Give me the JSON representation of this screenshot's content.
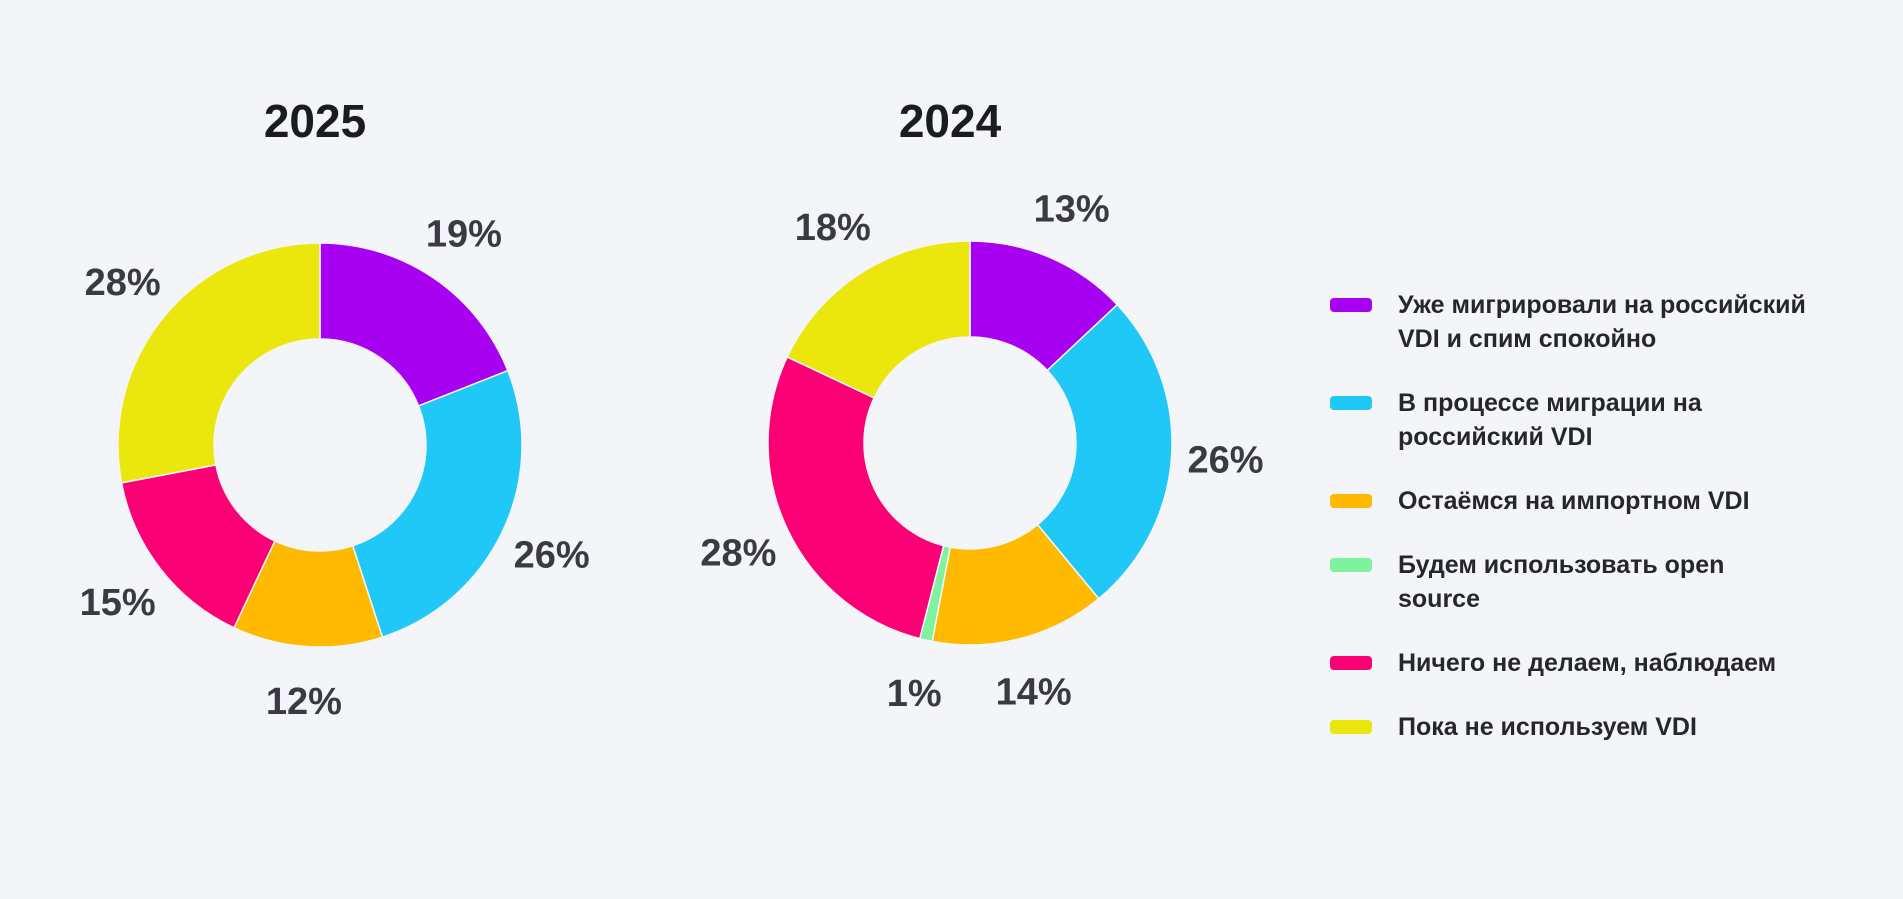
{
  "background_color": "#F4F5F9",
  "title_color": "#1B1B23",
  "label_color": "#3A3A44",
  "chart_data": [
    {
      "type": "pie",
      "subtype": "donut",
      "title": "2025",
      "unit": "%",
      "categories": [
        "Уже мигрировали на российский VDI и спим спокойно",
        "В процессе миграции на российский VDI",
        "Остаёмся на импортном VDI",
        "Будем использовать open source",
        "Ничего не делаем, наблюдаем",
        "Пока не используем VDI"
      ],
      "values": [
        19,
        26,
        12,
        0,
        15,
        28
      ],
      "data_labels": [
        "19%",
        "26%",
        "12%",
        "",
        "15%",
        "28%"
      ],
      "colors": [
        "#A800F0",
        "#1FC8F6",
        "#FFBA00",
        "#7FF2A0",
        "#FB0074",
        "#EBE70D"
      ],
      "start_angle_deg": 0,
      "direction": "clockwise",
      "legend_position": "right"
    },
    {
      "type": "pie",
      "subtype": "donut",
      "title": "2024",
      "unit": "%",
      "categories": [
        "Уже мигрировали на российский VDI и спим спокойно",
        "В процессе миграции на российский VDI",
        "Остаёмся на импортном VDI",
        "Будем использовать open source",
        "Ничего не делаем, наблюдаем",
        "Пока не используем VDI"
      ],
      "values": [
        13,
        26,
        14,
        1,
        28,
        18
      ],
      "data_labels": [
        "13%",
        "26%",
        "14%",
        "1%",
        "28%",
        "18%"
      ],
      "colors": [
        "#A800F0",
        "#1FC8F6",
        "#FFBA00",
        "#7FF2A0",
        "#FB0074",
        "#EBE70D"
      ],
      "start_angle_deg": 0,
      "direction": "clockwise",
      "legend_position": "right"
    }
  ],
  "legend": {
    "items": [
      {
        "label": "Уже мигрировали на российский VDI и спим спокойно",
        "color": "#A800F0"
      },
      {
        "label": "В процессе миграции на российский VDI",
        "color": "#1FC8F6"
      },
      {
        "label": "Остаёмся на импортном VDI",
        "color": "#FFBA00"
      },
      {
        "label": "Будем использовать open source",
        "color": "#7FF2A0"
      },
      {
        "label": "Ничего не делаем, наблюдаем",
        "color": "#FB0074"
      },
      {
        "label": "Пока не используем VDI",
        "color": "#EBE70D"
      }
    ]
  }
}
